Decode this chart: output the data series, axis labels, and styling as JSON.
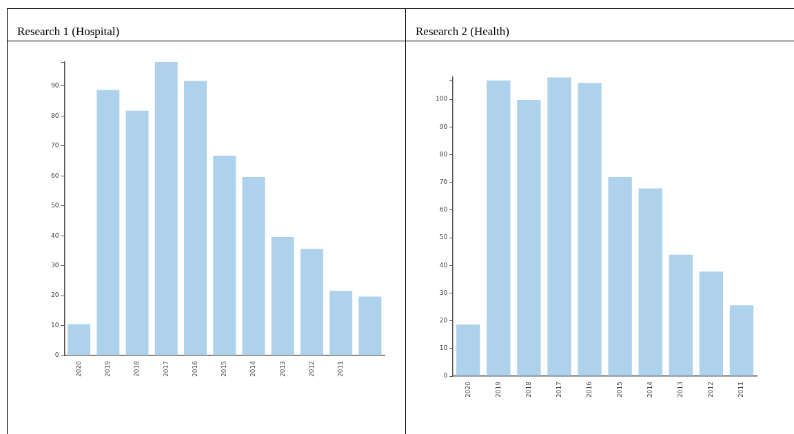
{
  "chart_data": [
    {
      "type": "bar",
      "title": "Research 1 (Hospital)",
      "categories": [
        "2020",
        "2019",
        "2018",
        "2017",
        "2016",
        "2015",
        "2014",
        "2013",
        "2012",
        "2011",
        null
      ],
      "values": [
        10.5,
        88.7,
        81.7,
        98,
        91.7,
        66.7,
        59.6,
        39.6,
        35.6,
        21.6,
        19.7
      ],
      "color": "#aed2ec",
      "ylim": [
        0,
        98
      ],
      "yticks": [
        0,
        10,
        20,
        30,
        40,
        50,
        60,
        70,
        80,
        90,
        {
          "value": 98,
          "label": null
        }
      ],
      "grid": false,
      "legend": false
    },
    {
      "type": "bar",
      "title": "Research 2 (Health)",
      "categories": [
        "2020",
        "2019",
        "2018",
        "2017",
        "2016",
        "2015",
        "2014",
        "2013",
        "2012",
        "2011"
      ],
      "values": [
        18.7,
        106.8,
        99.8,
        107.9,
        105.9,
        71.9,
        67.8,
        43.9,
        37.8,
        25.6
      ],
      "color": "#aed2ec",
      "ylim": [
        0,
        108
      ],
      "yticks": [
        0,
        10,
        20,
        30,
        40,
        50,
        60,
        70,
        80,
        90,
        100,
        {
          "value": 107,
          "label": null
        }
      ],
      "grid": false,
      "legend": false
    }
  ]
}
